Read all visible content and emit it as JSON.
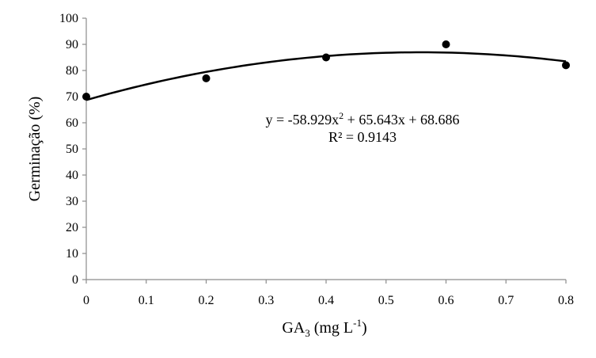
{
  "chart_data": {
    "type": "scatter",
    "xlabel": "GA",
    "xlabel_sub": "3",
    "xlabel_unit_prefix": " (mg L",
    "xlabel_sup": "-1",
    "xlabel_unit_suffix": ")",
    "ylabel": "Germinação (%)",
    "xlim": [
      0,
      0.8
    ],
    "ylim": [
      0,
      100
    ],
    "xticks": [
      "0",
      "0.1",
      "0.2",
      "0.3",
      "0.4",
      "0.5",
      "0.6",
      "0.7",
      "0.8"
    ],
    "yticks": [
      "0",
      "10",
      "20",
      "30",
      "40",
      "50",
      "60",
      "70",
      "80",
      "90",
      "100"
    ],
    "grid": false,
    "points": [
      {
        "x": 0,
        "y": 70
      },
      {
        "x": 0.2,
        "y": 77
      },
      {
        "x": 0.4,
        "y": 85
      },
      {
        "x": 0.6,
        "y": 90
      },
      {
        "x": 0.8,
        "y": 82
      }
    ],
    "trendline": {
      "type": "polynomial",
      "degree": 2,
      "a": -58.929,
      "b": 65.643,
      "c": 68.686
    },
    "equation": {
      "y_part": "y = -58.929x",
      "exp": "2",
      "rest": " + 65.643x + 68.686",
      "r2_label": "R² = 0.9143"
    },
    "colors": {
      "marker": "#000000",
      "line": "#000000",
      "axis": "#8c8c8c"
    }
  }
}
